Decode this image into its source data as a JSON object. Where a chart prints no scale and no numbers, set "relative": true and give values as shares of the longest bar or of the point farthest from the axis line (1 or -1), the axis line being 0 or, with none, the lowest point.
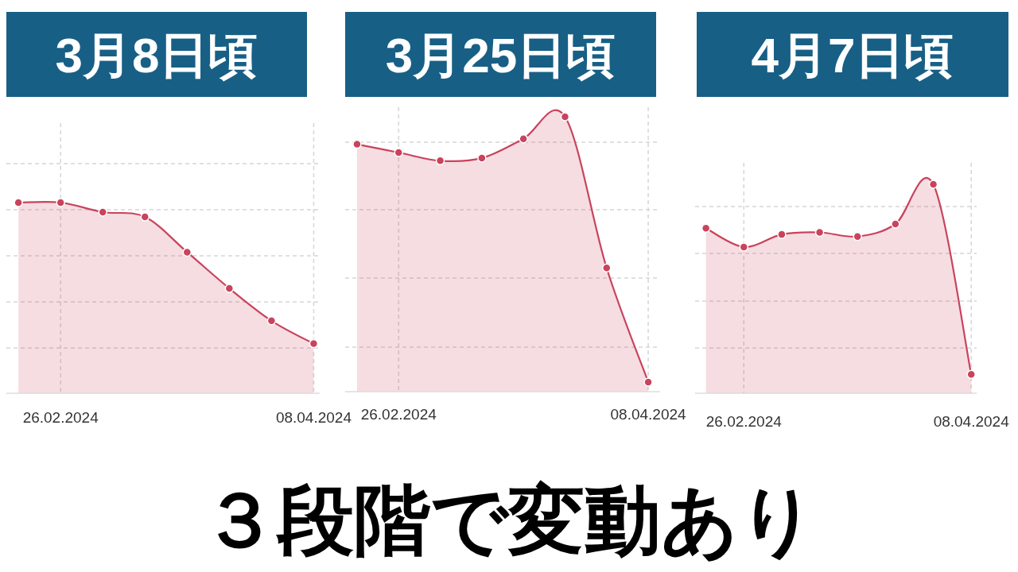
{
  "chart_data": [
    {
      "type": "area",
      "title": "3月8日頃",
      "relative": true,
      "x": [
        "2024-02-19",
        "2024-02-26",
        "2024-03-04",
        "2024-03-11",
        "2024-03-18",
        "2024-03-25",
        "2024-04-01",
        "2024-04-08"
      ],
      "xlim": [
        "2024-02-17",
        "2024-04-09"
      ],
      "xticks": [
        {
          "value": "2024-02-26",
          "label": "26.02.2024"
        },
        {
          "value": "2024-04-08",
          "label": "08.04.2024"
        }
      ],
      "grid": true,
      "marker": "circle",
      "series": [
        {
          "color": "#c9435c",
          "values": [
            1,
            1,
            0.95,
            0.925,
            0.74,
            0.55,
            0.38,
            0.26
          ]
        }
      ]
    },
    {
      "type": "area",
      "title": "3月25日頃",
      "relative": true,
      "x": [
        "2024-02-19",
        "2024-02-26",
        "2024-03-04",
        "2024-03-11",
        "2024-03-18",
        "2024-03-25",
        "2024-04-01",
        "2024-04-08"
      ],
      "xlim": [
        "2024-02-17",
        "2024-04-10"
      ],
      "xticks": [
        {
          "value": "2024-02-26",
          "label": "26.02.2024"
        },
        {
          "value": "2024-04-08",
          "label": "08.04.2024"
        }
      ],
      "grid": true,
      "marker": "circle",
      "series": [
        {
          "color": "#c9435c",
          "values": [
            0.9,
            0.87,
            0.84,
            0.85,
            0.92,
            1,
            0.45,
            0.035
          ]
        }
      ]
    },
    {
      "type": "area",
      "title": "4月7日頃",
      "relative": true,
      "x": [
        "2024-02-19",
        "2024-02-26",
        "2024-03-04",
        "2024-03-11",
        "2024-03-18",
        "2024-03-25",
        "2024-04-01",
        "2024-04-08"
      ],
      "xlim": [
        "2024-02-17",
        "2024-04-09"
      ],
      "xticks": [
        {
          "value": "2024-02-26",
          "label": "26.02.2024"
        },
        {
          "value": "2024-04-08",
          "label": "08.04.2024"
        }
      ],
      "grid": true,
      "marker": "circle",
      "annotations": [
        "３段階で変動あり"
      ],
      "series": [
        {
          "color": "#c9435c",
          "values": [
            0.79,
            0.7,
            0.76,
            0.77,
            0.75,
            0.81,
            1,
            0.09
          ]
        }
      ]
    }
  ]
}
